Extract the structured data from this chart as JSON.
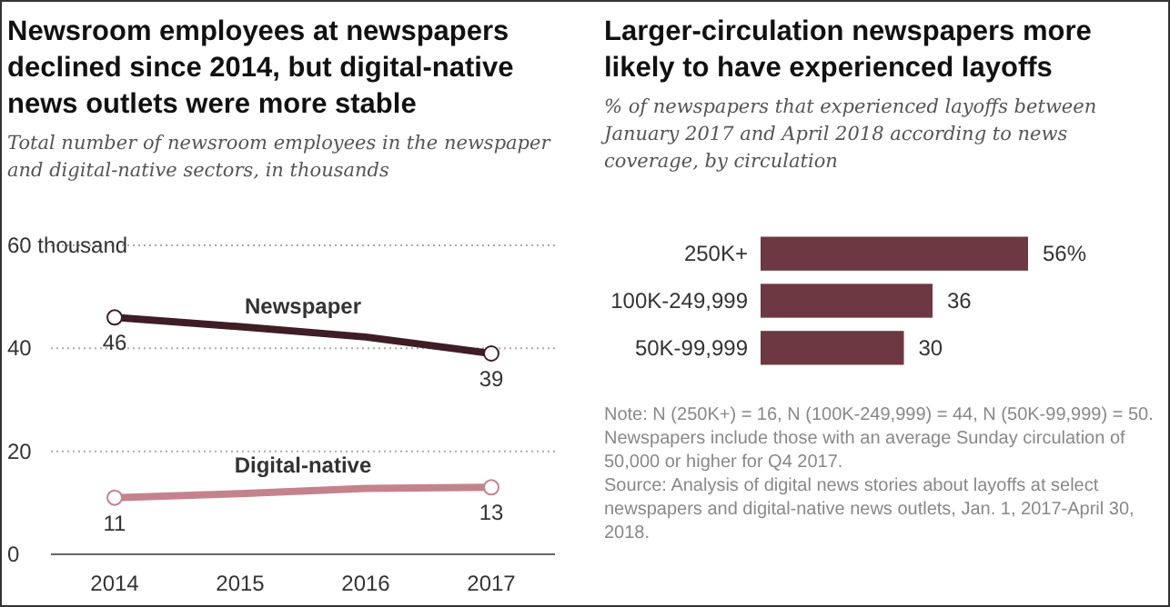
{
  "chart_data": [
    {
      "type": "line",
      "title": "Newsroom employees at newspapers declined since 2014, but digital-native news outlets were more stable",
      "subtitle": "Total number of newsroom employees in the newspaper and digital-native sectors, in thousands",
      "categories": [
        "2014",
        "2015",
        "2016",
        "2017"
      ],
      "ylim": [
        0,
        60
      ],
      "yticks": [
        0,
        20,
        40,
        {
          "value": 60,
          "label": "60 thousand"
        }
      ],
      "grid": "y",
      "marker": "circle",
      "series": [
        {
          "name": "Newspaper",
          "color": "#3f1d24",
          "values": [
            46,
            44.2,
            42.2,
            39
          ],
          "value_labels": [
            "46",
            null,
            null,
            "39"
          ]
        },
        {
          "name": "Digital-native",
          "color": "#c4838c",
          "values": [
            11,
            11.8,
            12.8,
            13
          ],
          "value_labels": [
            "11",
            null,
            null,
            "13"
          ]
        }
      ]
    },
    {
      "type": "bar",
      "orientation": "horizontal",
      "title": "Larger-circulation newspapers more likely to have experienced layoffs",
      "subtitle": "% of newspapers that experienced layoffs between January 2017 and April 2018 according to news coverage, by circulation",
      "categories": [
        "250K+",
        "100K-249,999",
        "50K-99,999"
      ],
      "values": [
        56,
        36,
        30
      ],
      "color": "#6e3843",
      "value_labels": [
        "56%",
        "36",
        "30"
      ],
      "annotations": [
        "Note: N (250K+) = 16, N (100K-249,999) = 44, N (50K-99,999) = 50. Newspapers include those with an average Sunday circulation of 50,000 or higher for Q4 2017.",
        "Source: Analysis of digital news stories about layoffs at select newspapers and digital-native news outlets, Jan. 1, 2017-April 30, 2018."
      ]
    }
  ]
}
